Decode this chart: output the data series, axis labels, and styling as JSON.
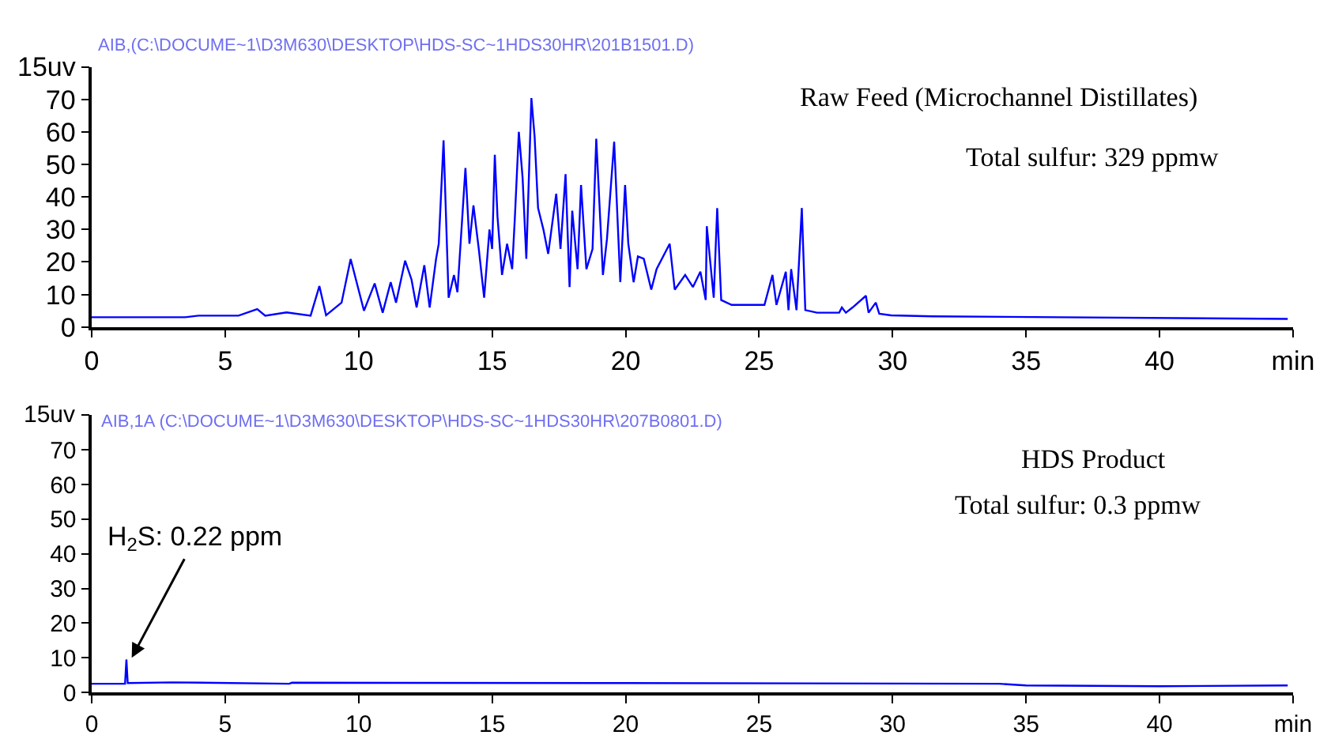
{
  "chart_data": [
    {
      "type": "line",
      "title": "AIB,(C:\\DOCUME~1\\D3M630\\DESKTOP\\HDS-SC~1HDS30HR\\201B1501.D)",
      "annotations": [
        "Raw Feed (Microchannel Distillates)",
        "Total sulfur: 329 ppmw"
      ],
      "series": [
        {
          "color": "#0000ff",
          "x": [
            0,
            1.5,
            2.0,
            2.09,
            2.2,
            3.5,
            4.0,
            5.5,
            6.2,
            6.5,
            7.3,
            8.2,
            8.53,
            8.78,
            9.36,
            9.7,
            10.2,
            10.6,
            10.9,
            11.2,
            11.4,
            11.74,
            11.98,
            12.17,
            12.46,
            12.66,
            12.9,
            13.0,
            13.18,
            13.37,
            13.57,
            13.7,
            14.0,
            14.15,
            14.3,
            14.5,
            14.7,
            14.9,
            15.0,
            15.1,
            15.2,
            15.37,
            15.56,
            15.75,
            15.85,
            16.0,
            16.14,
            16.28,
            16.47,
            16.59,
            16.72,
            16.92,
            17.1,
            17.4,
            17.56,
            17.75,
            17.9,
            18.0,
            18.2,
            18.33,
            18.53,
            18.76,
            18.9,
            19.15,
            19.3,
            19.57,
            19.73,
            19.8,
            19.98,
            20.1,
            20.3,
            20.46,
            20.68,
            20.96,
            21.16,
            21.65,
            21.84,
            22.23,
            22.52,
            22.8,
            23.0,
            23.04,
            23.3,
            23.43,
            23.58,
            23.97,
            24.74,
            25.2,
            25.5,
            25.65,
            26.0,
            26.1,
            26.2,
            26.4,
            26.6,
            26.73,
            27.17,
            28.0,
            28.1,
            28.25,
            28.5,
            29.0,
            29.1,
            29.37,
            29.5,
            29.94,
            31.5,
            44.8
          ],
          "values": [
            3,
            3,
            3,
            3,
            3,
            3,
            3.5,
            3.5,
            5.5,
            3.5,
            4.5,
            3.5,
            12.6,
            3.6,
            7.5,
            20.9,
            5,
            13.4,
            4.4,
            13.8,
            7.5,
            20.4,
            14.6,
            6,
            19,
            6,
            21,
            25.6,
            57.4,
            9,
            16,
            10.7,
            48.9,
            25.6,
            37.4,
            24,
            9,
            30,
            24,
            53,
            34,
            16,
            25.6,
            17.8,
            33.5,
            60,
            46,
            21,
            70.4,
            58.6,
            36.6,
            30,
            22.5,
            41,
            24,
            47,
            12.3,
            35.8,
            17.8,
            43.7,
            17.8,
            24,
            57.9,
            16,
            27,
            57,
            27,
            13.8,
            43.7,
            25.6,
            13.8,
            21.7,
            21,
            11.5,
            17.8,
            25.6,
            11.5,
            16,
            12.3,
            17,
            8.3,
            31,
            9,
            36.6,
            8.3,
            6.8,
            6.8,
            6.8,
            16,
            6.8,
            17,
            5.2,
            17.8,
            5.2,
            36.6,
            5.2,
            4.4,
            4.4,
            6,
            4.4,
            6,
            9.6,
            4.4,
            7.5,
            4.1,
            3.6,
            3.3,
            2.5
          ]
        }
      ],
      "xlim": [
        0,
        45
      ],
      "xticks": [
        0,
        5,
        10,
        15,
        20,
        25,
        30,
        35,
        40,
        {
          "value": 45,
          "label": "min"
        }
      ],
      "ylim": [
        0,
        80
      ],
      "yticks": [
        0,
        10,
        20,
        30,
        40,
        50,
        60,
        70,
        {
          "value": 80,
          "label": null
        }
      ],
      "ylabel": "15uv"
    },
    {
      "type": "line",
      "title": "AIB,1A (C:\\DOCUME~1\\D3M630\\DESKTOP\\HDS-SC~1HDS30HR\\207B0801.D)",
      "annotations": [
        "HDS Product",
        "Total sulfur: 0.3 ppmw",
        {
          "text": "H$_{2}$S: 0.22 ppm",
          "x": 1.5,
          "y": 10
        }
      ],
      "series": [
        {
          "color": "#0000ff",
          "x": [
            0,
            1.25,
            1.3,
            1.35,
            3,
            7.4,
            7.5,
            20,
            34,
            35,
            40,
            44.8
          ],
          "values": [
            2.5,
            2.5,
            9.5,
            2.7,
            2.9,
            2.5,
            2.8,
            2.7,
            2.5,
            2,
            1.8,
            2
          ]
        }
      ],
      "xlim": [
        0,
        45
      ],
      "xticks": [
        0,
        5,
        10,
        15,
        20,
        25,
        30,
        35,
        40,
        {
          "value": 45,
          "label": "min"
        }
      ],
      "ylim": [
        0,
        80
      ],
      "yticks": [
        0,
        10,
        20,
        30,
        40,
        50,
        60,
        70,
        {
          "value": 80,
          "label": null
        }
      ],
      "ylabel": "15uv"
    }
  ]
}
